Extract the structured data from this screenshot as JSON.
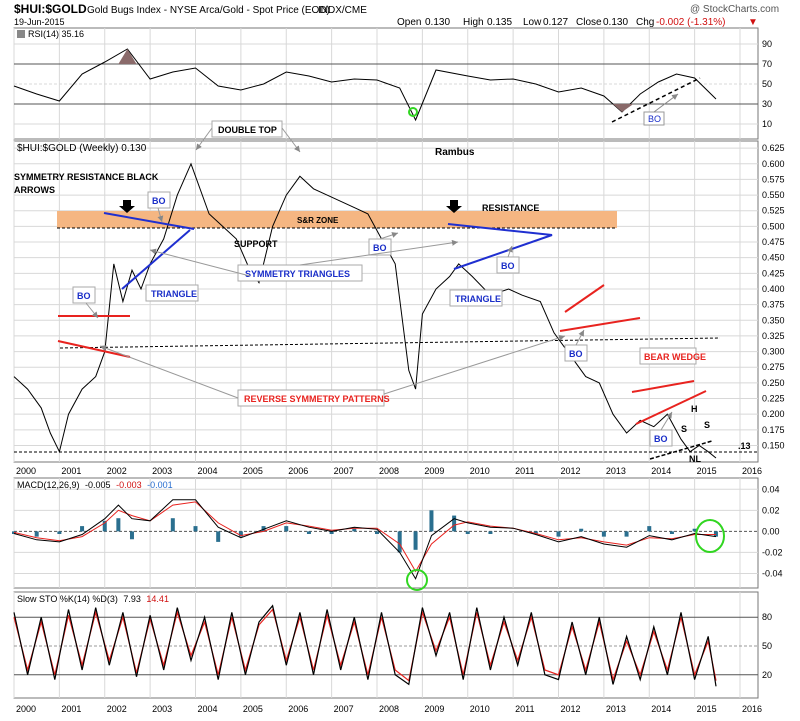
{
  "header": {
    "symbol": "$HUI:$GOLD",
    "description": "Gold Bugs Index - NYSE Arca/Gold - Spot Price (EOD)",
    "exchange": "INDX/CME",
    "date": "19-Jun-2015",
    "watermark": "@ StockCharts.com",
    "ohlc": {
      "open_label": "Open",
      "open": "0.130",
      "high_label": "High",
      "high": "0.135",
      "low_label": "Low",
      "low": "0.127",
      "close_label": "Close",
      "close": "0.130",
      "chg_label": "Chg",
      "chg": "-0.002 (-1.31%)"
    }
  },
  "colors": {
    "price": "#000000",
    "srzone": "#f5b682",
    "red_line": "#e8231f",
    "blue_line": "#1f2fd0",
    "macd_hist": "#2a6f8f",
    "green_circle": "#31d621",
    "grid": "#d8d8d8",
    "rsi_fill": "#8a6a6a"
  },
  "x_axis": {
    "years": [
      "2000",
      "2001",
      "2002",
      "2003",
      "2004",
      "2005",
      "2006",
      "2007",
      "2008",
      "2009",
      "2010",
      "2011",
      "2012",
      "2013",
      "2014",
      "2015",
      "2016"
    ]
  },
  "rsi_panel": {
    "label": "RSI(14) 35.16",
    "ticks": [
      "90",
      "70",
      "50",
      "30",
      "10"
    ],
    "bo_label": "BO"
  },
  "price_panel": {
    "label": "$HUI:$GOLD (Weekly) 0.130",
    "author": "Rambus",
    "ticks": [
      "0.625",
      "0.600",
      "0.575",
      "0.550",
      "0.525",
      "0.500",
      "0.475",
      "0.450",
      "0.425",
      "0.400",
      "0.375",
      "0.350",
      "0.325",
      "0.300",
      "0.275",
      "0.250",
      "0.225",
      "0.200",
      "0.175",
      "0.150"
    ],
    "last_value_label": ".13",
    "annotations": {
      "double_top": "DOUBLE TOP",
      "sym_res_line1": "SYMMETRY RESISTANCE BLACK",
      "sym_res_line2": "ARROWS",
      "sr_zone": "S&R ZONE",
      "resistance": "RESISTANCE",
      "support": "SUPPORT",
      "symmetry_triangles": "SYMMETRY TRIANGLES",
      "triangle": "TRIANGLE",
      "reverse_symmetry": "REVERSE SYMMETRY PATTERNS",
      "bear_wedge": "BEAR WEDGE",
      "bo": "BO",
      "h": "H",
      "s": "S",
      "nl": "NL"
    }
  },
  "macd_panel": {
    "label_prefix": "MACD(12,26,9)",
    "macd": "-0.005",
    "signal": "-0.003",
    "histogram": "-0.001",
    "ticks": [
      "0.04",
      "0.02",
      "0.00",
      "-0.02",
      "-0.04"
    ]
  },
  "sto_panel": {
    "label_prefix": "Slow STO %K(14) %D(3)",
    "k": "7.93",
    "d": "14.41",
    "ticks": [
      "80",
      "50",
      "20"
    ]
  },
  "chart_data": [
    {
      "type": "line",
      "title": "$HUI:$GOLD (Weekly)",
      "ylim": [
        0.13,
        0.63
      ],
      "x": [
        2000.0,
        2000.3,
        2000.6,
        2000.8,
        2001.0,
        2001.2,
        2001.5,
        2001.8,
        2002.0,
        2002.2,
        2002.4,
        2002.6,
        2002.8,
        2003.0,
        2003.3,
        2003.6,
        2003.9,
        2004.0,
        2004.3,
        2004.6,
        2004.9,
        2005.2,
        2005.4,
        2005.7,
        2006.0,
        2006.3,
        2006.6,
        2006.9,
        2007.2,
        2007.5,
        2007.8,
        2008.1,
        2008.4,
        2008.7,
        2008.85,
        2009.0,
        2009.3,
        2009.6,
        2009.8,
        2010.1,
        2010.5,
        2010.9,
        2011.2,
        2011.6,
        2011.9,
        2012.2,
        2012.6,
        2012.9,
        2013.2,
        2013.5,
        2013.8,
        2014.1,
        2014.4,
        2014.7,
        2014.9,
        2015.1,
        2015.3,
        2015.47
      ],
      "y": [
        0.26,
        0.24,
        0.21,
        0.17,
        0.14,
        0.2,
        0.24,
        0.26,
        0.3,
        0.44,
        0.38,
        0.43,
        0.4,
        0.44,
        0.48,
        0.55,
        0.6,
        0.58,
        0.52,
        0.5,
        0.48,
        0.43,
        0.41,
        0.5,
        0.55,
        0.58,
        0.56,
        0.55,
        0.54,
        0.53,
        0.52,
        0.48,
        0.44,
        0.27,
        0.24,
        0.36,
        0.4,
        0.42,
        0.44,
        0.42,
        0.39,
        0.4,
        0.39,
        0.38,
        0.33,
        0.3,
        0.26,
        0.25,
        0.2,
        0.17,
        0.19,
        0.18,
        0.2,
        0.16,
        0.14,
        0.15,
        0.14,
        0.13
      ]
    },
    {
      "type": "line",
      "title": "RSI(14)",
      "ylim": [
        0,
        100
      ],
      "x": [
        2000.0,
        2000.5,
        2001.0,
        2001.5,
        2002.0,
        2002.5,
        2003.0,
        2003.5,
        2004.0,
        2004.5,
        2005.0,
        2005.5,
        2006.0,
        2006.5,
        2007.0,
        2007.5,
        2008.0,
        2008.5,
        2008.85,
        2009.3,
        2010.0,
        2010.5,
        2011.0,
        2011.5,
        2012.0,
        2012.5,
        2013.0,
        2013.4,
        2013.8,
        2014.2,
        2014.6,
        2015.0,
        2015.47
      ],
      "y": [
        48,
        40,
        33,
        60,
        72,
        85,
        55,
        62,
        66,
        48,
        44,
        50,
        62,
        58,
        52,
        55,
        54,
        46,
        14,
        64,
        58,
        54,
        55,
        50,
        42,
        46,
        38,
        22,
        40,
        52,
        60,
        56,
        35
      ]
    },
    {
      "type": "line",
      "title": "MACD(12,26,9)",
      "ylim": [
        -0.05,
        0.045
      ],
      "x": [
        2000.0,
        2000.5,
        2001.0,
        2001.5,
        2002.0,
        2002.3,
        2002.6,
        2003.0,
        2003.5,
        2004.0,
        2004.5,
        2005.0,
        2005.5,
        2006.0,
        2006.5,
        2007.0,
        2007.5,
        2008.0,
        2008.5,
        2008.85,
        2009.2,
        2009.7,
        2010.0,
        2010.5,
        2011.0,
        2011.5,
        2012.0,
        2012.5,
        2013.0,
        2013.5,
        2014.0,
        2014.5,
        2015.0,
        2015.47
      ],
      "series": [
        {
          "name": "MACD",
          "values": [
            -0.002,
            -0.008,
            -0.01,
            -0.003,
            0.012,
            0.025,
            0.012,
            0.01,
            0.03,
            0.03,
            0.004,
            -0.006,
            0.002,
            0.01,
            0.004,
            0.0,
            0.004,
            0.002,
            -0.02,
            -0.045,
            -0.004,
            0.012,
            0.008,
            0.004,
            0.003,
            -0.003,
            -0.01,
            -0.005,
            -0.012,
            -0.015,
            -0.004,
            -0.008,
            -0.002,
            -0.005
          ]
        },
        {
          "name": "Signal",
          "values": [
            -0.001,
            -0.006,
            -0.009,
            -0.005,
            0.008,
            0.02,
            0.015,
            0.01,
            0.025,
            0.028,
            0.008,
            -0.004,
            0.0,
            0.008,
            0.005,
            0.001,
            0.003,
            0.003,
            -0.012,
            -0.038,
            -0.012,
            0.006,
            0.009,
            0.005,
            0.003,
            -0.002,
            -0.008,
            -0.006,
            -0.01,
            -0.013,
            -0.006,
            -0.007,
            -0.003,
            -0.003
          ]
        }
      ]
    },
    {
      "type": "line",
      "title": "Slow STO %K(14) %D(3)",
      "ylim": [
        0,
        100
      ],
      "x": [
        2000.0,
        2000.3,
        2000.6,
        2000.9,
        2001.2,
        2001.5,
        2001.8,
        2002.1,
        2002.4,
        2002.7,
        2003.0,
        2003.3,
        2003.6,
        2003.9,
        2004.2,
        2004.5,
        2004.8,
        2005.1,
        2005.4,
        2005.7,
        2006.0,
        2006.3,
        2006.6,
        2006.9,
        2007.2,
        2007.5,
        2007.8,
        2008.1,
        2008.4,
        2008.7,
        2009.0,
        2009.3,
        2009.6,
        2009.9,
        2010.2,
        2010.5,
        2010.8,
        2011.1,
        2011.4,
        2011.7,
        2012.0,
        2012.3,
        2012.6,
        2012.9,
        2013.2,
        2013.5,
        2013.8,
        2014.1,
        2014.4,
        2014.7,
        2015.0,
        2015.3,
        2015.47
      ],
      "series": [
        {
          "name": "%K",
          "values": [
            85,
            20,
            80,
            15,
            88,
            25,
            90,
            30,
            85,
            18,
            82,
            25,
            90,
            35,
            80,
            15,
            85,
            20,
            75,
            92,
            30,
            85,
            20,
            88,
            25,
            80,
            15,
            85,
            20,
            10,
            90,
            40,
            85,
            15,
            90,
            25,
            80,
            30,
            85,
            20,
            15,
            75,
            20,
            80,
            10,
            60,
            15,
            70,
            20,
            85,
            15,
            60,
            8
          ]
        },
        {
          "name": "%D",
          "values": [
            80,
            25,
            75,
            20,
            82,
            30,
            85,
            35,
            80,
            22,
            78,
            30,
            85,
            40,
            75,
            20,
            80,
            25,
            72,
            88,
            35,
            80,
            25,
            82,
            30,
            75,
            20,
            80,
            25,
            14,
            85,
            45,
            80,
            20,
            85,
            30,
            75,
            35,
            80,
            25,
            20,
            70,
            25,
            75,
            15,
            55,
            20,
            65,
            25,
            80,
            20,
            55,
            14
          ]
        }
      ]
    }
  ]
}
